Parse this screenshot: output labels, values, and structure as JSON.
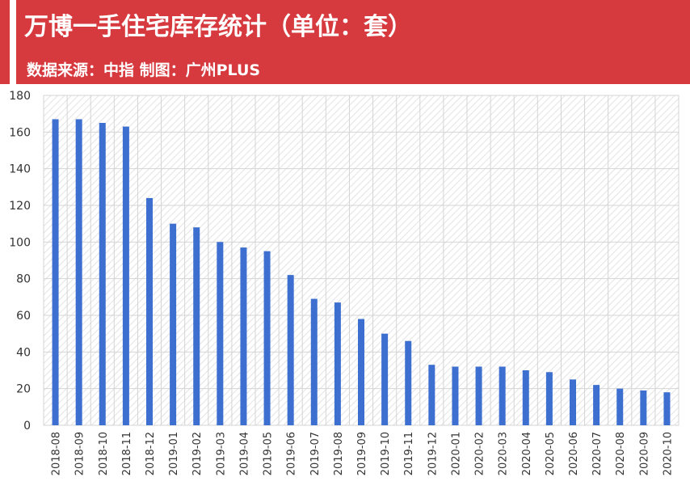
{
  "header": {
    "title": "万博一手住宅库存统计（单位：套）",
    "subtitle": "数据来源：中指 制图：广州PLUS"
  },
  "colors": {
    "header_bg": "#d63a3f",
    "bar": "#3c6fcf"
  },
  "chart_data": {
    "type": "bar",
    "title": "万博一手住宅库存统计（单位：套）",
    "categories": [
      "2018-08",
      "2018-09",
      "2018-10",
      "2018-11",
      "2018-12",
      "2019-01",
      "2019-02",
      "2019-03",
      "2019-04",
      "2019-05",
      "2019-06",
      "2019-07",
      "2019-08",
      "2019-09",
      "2019-10",
      "2019-11",
      "2019-12",
      "2020-01",
      "2020-02",
      "2020-03",
      "2020-04",
      "2020-05",
      "2020-06",
      "2020-07",
      "2020-08",
      "2020-09",
      "2020-10"
    ],
    "values": [
      167,
      167,
      165,
      163,
      124,
      110,
      108,
      100,
      97,
      95,
      82,
      69,
      67,
      58,
      50,
      46,
      33,
      32,
      32,
      32,
      30,
      29,
      25,
      22,
      20,
      19,
      18
    ],
    "ylim": [
      0,
      180
    ],
    "yticks": [
      0,
      20,
      40,
      60,
      80,
      100,
      120,
      140,
      160,
      180
    ],
    "grid": true,
    "legend": "none",
    "xlabel": "",
    "ylabel": ""
  }
}
